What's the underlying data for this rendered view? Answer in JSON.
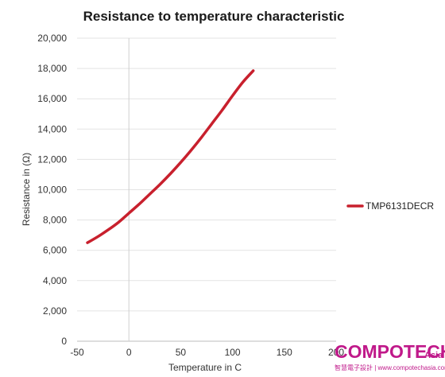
{
  "chart_data": {
    "type": "line",
    "title": "Resistance to temperature characteristic",
    "xlabel": "Temperature in C",
    "ylabel": "Resistance in (Ω)",
    "xlim": [
      -50,
      200
    ],
    "ylim": [
      0,
      20000
    ],
    "x_ticks": [
      "-50",
      "0",
      "50",
      "100",
      "150",
      "200"
    ],
    "y_ticks": [
      "0",
      "2,000",
      "4,000",
      "6,000",
      "8,000",
      "10,000",
      "12,000",
      "14,000",
      "16,000",
      "18,000",
      "20,000"
    ],
    "grid": "horizontal",
    "legend_position": "right",
    "series": [
      {
        "name": "TMP6131DECR",
        "color": "#c8202d",
        "x": [
          -40,
          -30,
          -20,
          -10,
          0,
          10,
          20,
          30,
          40,
          50,
          60,
          70,
          80,
          90,
          100,
          110,
          120
        ],
        "y": [
          6500,
          6900,
          7350,
          7850,
          8450,
          9050,
          9700,
          10350,
          11050,
          11800,
          12600,
          13450,
          14350,
          15250,
          16200,
          17100,
          17850
        ]
      }
    ]
  },
  "watermark": {
    "brand": "COMPOTECH",
    "region": "Asia",
    "tagline": "智慧電子設計 | www.compotechasia.com"
  }
}
